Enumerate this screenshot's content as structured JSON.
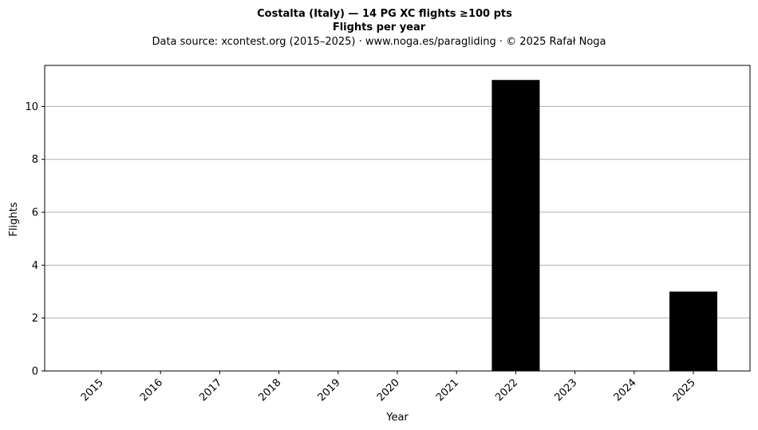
{
  "chart_data": {
    "type": "bar",
    "title": "Costalta (Italy)  —  14 PG XC flights ≥100 pts",
    "subtitle": "Flights per year",
    "source_note": "Data source: xcontest.org (2015–2025)  ·  www.noga.es/paragliding  ·  © 2025 Rafał Noga",
    "xlabel": "Year",
    "ylabel": "Flights",
    "categories": [
      "2015",
      "2016",
      "2017",
      "2018",
      "2019",
      "2020",
      "2021",
      "2022",
      "2023",
      "2024",
      "2025"
    ],
    "values": [
      0,
      0,
      0,
      0,
      0,
      0,
      0,
      11,
      0,
      0,
      3
    ],
    "ylim": [
      0,
      11.55
    ],
    "yticks": [
      0,
      2,
      4,
      6,
      8,
      10
    ],
    "grid": "horizontal",
    "bar_color": "#000000",
    "grid_color": "#b0b0b0"
  }
}
